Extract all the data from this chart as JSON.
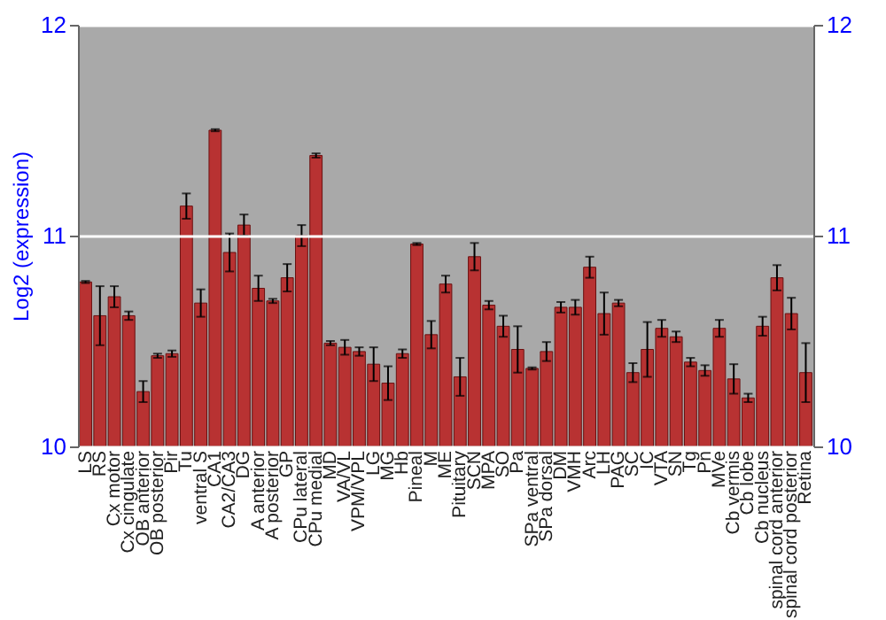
{
  "chart_data": {
    "type": "bar",
    "ylabel": "Log2 (expression)",
    "categories": [
      "LS",
      "RS",
      "Cx motor",
      "Cx cingulate",
      "OB anterior",
      "OB posterior",
      "Pir",
      "Tu",
      "ventral S",
      "CA1",
      "CA2/CA3",
      "DG",
      "A anterior",
      "A posterior",
      "GP",
      "CPu lateral",
      "CPu medial",
      "MD",
      "VA/VL",
      "VPM/VPL",
      "LG",
      "MG",
      "Hb",
      "Pineal",
      "M",
      "ME",
      "Pituitary",
      "SCN",
      "MPA",
      "SO",
      "Pa",
      "SPa ventral",
      "SPa dorsal",
      "DM",
      "VMH",
      "Arc",
      "LH",
      "PAG",
      "SC",
      "IC",
      "VTA",
      "SN",
      "Tg",
      "Pn",
      "MVe",
      "Cb vermis",
      "Cb lobe",
      "Cb nucleus",
      "spinal cord anterior",
      "spinal cord posterior",
      "Retina"
    ],
    "values": [
      10.78,
      10.62,
      10.71,
      10.62,
      10.26,
      10.43,
      10.44,
      11.14,
      10.68,
      11.5,
      10.92,
      11.05,
      10.75,
      10.69,
      10.8,
      11.0,
      11.38,
      10.49,
      10.47,
      10.45,
      10.39,
      10.3,
      10.44,
      10.96,
      10.53,
      10.77,
      10.33,
      10.9,
      10.67,
      10.57,
      10.46,
      10.37,
      10.45,
      10.66,
      10.66,
      10.85,
      10.63,
      10.68,
      10.35,
      10.46,
      10.56,
      10.52,
      10.4,
      10.36,
      10.56,
      10.32,
      10.23,
      10.57,
      10.8,
      10.63,
      10.35
    ],
    "errors": [
      0.005,
      0.14,
      0.05,
      0.02,
      0.05,
      0.01,
      0.015,
      0.06,
      0.065,
      0.005,
      0.09,
      0.05,
      0.06,
      0.01,
      0.065,
      0.05,
      0.01,
      0.01,
      0.035,
      0.02,
      0.08,
      0.08,
      0.02,
      0.005,
      0.065,
      0.04,
      0.09,
      0.065,
      0.02,
      0.05,
      0.11,
      0.005,
      0.045,
      0.025,
      0.035,
      0.05,
      0.1,
      0.015,
      0.045,
      0.13,
      0.04,
      0.025,
      0.02,
      0.025,
      0.04,
      0.07,
      0.02,
      0.045,
      0.06,
      0.075,
      0.14
    ],
    "color": "#b83232",
    "ylim": [
      10,
      12
    ],
    "yticks": [
      10,
      11,
      12
    ],
    "y2lim": [
      10,
      12
    ],
    "y2ticks": [
      10,
      11,
      12
    ],
    "grid": "y"
  }
}
